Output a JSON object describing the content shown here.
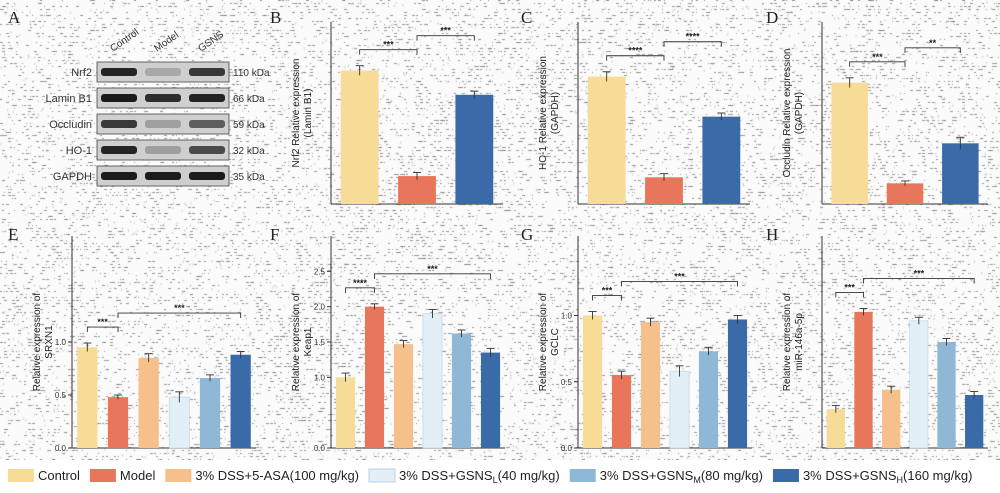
{
  "panels": [
    "A",
    "B",
    "C",
    "D",
    "E",
    "F",
    "G",
    "H"
  ],
  "colors": {
    "control": "#f6dc96",
    "model": "#e8765a",
    "asa": "#f5c08c",
    "gsns_l": "#e2eff7",
    "gsns_m": "#8fb8d6",
    "gsns_h": "#3b6aa8"
  },
  "blot": {
    "lanes": [
      "Control",
      "Model",
      "GSNS"
    ],
    "proteins": [
      {
        "name": "Nrf2",
        "size": "110 kDa",
        "intensity": [
          0.9,
          0.2,
          0.8
        ]
      },
      {
        "name": "Lamin B1",
        "size": "66 kDa",
        "intensity": [
          0.95,
          0.85,
          0.9
        ]
      },
      {
        "name": "Occludin",
        "size": "59 kDa",
        "intensity": [
          0.8,
          0.25,
          0.6
        ]
      },
      {
        "name": "HO-1",
        "size": "32 kDa",
        "intensity": [
          0.9,
          0.25,
          0.7
        ]
      },
      {
        "name": "GAPDH",
        "size": "35 kDa",
        "intensity": [
          0.95,
          0.95,
          0.95
        ]
      }
    ]
  },
  "legend": [
    {
      "main": "Control",
      "sub": "",
      "tail": "",
      "color": "#f6dc96"
    },
    {
      "main": "Model",
      "sub": "",
      "tail": "",
      "color": "#e8765a"
    },
    {
      "main": "3% DSS+5-ASA(100 mg/kg)",
      "sub": "",
      "tail": "",
      "color": "#f5c08c"
    },
    {
      "main": "3% DSS+GSNS",
      "sub": "L",
      "tail": "(40 mg/kg)",
      "color": "#e2eff7"
    },
    {
      "main": "3% DSS+GSNS",
      "sub": "M",
      "tail": "(80 mg/kg)",
      "color": "#8fb8d6"
    },
    {
      "main": "3% DSS+GSNS",
      "sub": "H",
      "tail": "(160 mg/kg)",
      "color": "#3b6aa8"
    }
  ],
  "chart_data": [
    {
      "panel": "B",
      "type": "bar",
      "ylabel": "Nrf2 Relative expression\n(Lamin B1)",
      "categories": [
        "Control",
        "Model",
        "GSNS"
      ],
      "values": [
        1.1,
        0.23,
        0.9
      ],
      "errors": [
        0.04,
        0.03,
        0.03
      ],
      "ylim": [
        0,
        1.5
      ],
      "yticks": [],
      "sig": [
        "***",
        "***"
      ]
    },
    {
      "panel": "C",
      "type": "bar",
      "ylabel": "HO-1 Relative expression\n(GAPDH)",
      "categories": [
        "Control",
        "Model",
        "GSNS"
      ],
      "values": [
        1.05,
        0.22,
        0.72
      ],
      "errors": [
        0.04,
        0.03,
        0.03
      ],
      "ylim": [
        0,
        1.5
      ],
      "yticks": [],
      "sig": [
        "****",
        "****"
      ]
    },
    {
      "panel": "D",
      "type": "bar",
      "ylabel": "Occludin Relative expression\n(GAPDH)",
      "categories": [
        "Control",
        "Model",
        "GSNS"
      ],
      "values": [
        1.0,
        0.17,
        0.5
      ],
      "errors": [
        0.04,
        0.02,
        0.05
      ],
      "ylim": [
        0,
        1.5
      ],
      "yticks": [],
      "sig": [
        "***",
        "**"
      ]
    },
    {
      "panel": "E",
      "type": "bar",
      "ylabel": "Relative expression of\nSRXN1",
      "categories": [
        "Control",
        "Model",
        "5-ASA",
        "GSNS-L",
        "GSNS-M",
        "GSNS-H"
      ],
      "values": [
        0.95,
        0.48,
        0.85,
        0.48,
        0.66,
        0.88
      ],
      "errors": [
        0.04,
        0.02,
        0.04,
        0.05,
        0.03,
        0.03
      ],
      "ylim": [
        0,
        2.0
      ],
      "yticks": [
        0,
        0.5,
        1.0
      ],
      "sig": [
        "***",
        "***"
      ]
    },
    {
      "panel": "F",
      "type": "bar",
      "ylabel": "Relative expression of\nKeap1",
      "categories": [
        "Control",
        "Model",
        "5-ASA",
        "GSNS-L",
        "GSNS-M",
        "GSNS-H"
      ],
      "values": [
        1.0,
        2.0,
        1.47,
        1.9,
        1.62,
        1.35
      ],
      "errors": [
        0.06,
        0.04,
        0.05,
        0.06,
        0.05,
        0.06
      ],
      "ylim": [
        0,
        3.0
      ],
      "yticks": [
        0,
        1.0,
        1.5,
        2.0,
        2.5
      ],
      "sig": [
        "****",
        "***"
      ]
    },
    {
      "panel": "G",
      "type": "bar",
      "ylabel": "Relative expression of\nGCLC",
      "categories": [
        "Control",
        "Model",
        "5-ASA",
        "GSNS-L",
        "GSNS-M",
        "GSNS-H"
      ],
      "values": [
        1.0,
        0.55,
        0.95,
        0.58,
        0.73,
        0.97
      ],
      "errors": [
        0.03,
        0.03,
        0.03,
        0.04,
        0.03,
        0.03
      ],
      "ylim": [
        0,
        1.6
      ],
      "yticks": [
        0,
        0.5,
        1.0
      ],
      "sig": [
        "***",
        "***"
      ]
    },
    {
      "panel": "H",
      "type": "bar",
      "ylabel": "Relative expression of\nmiR-146a-5p",
      "categories": [
        "Control",
        "Model",
        "5-ASA",
        "GSNS-L",
        "GSNS-M",
        "GSNS-H"
      ],
      "values": [
        0.22,
        0.77,
        0.33,
        0.72,
        0.6,
        0.3
      ],
      "errors": [
        0.02,
        0.02,
        0.02,
        0.02,
        0.02,
        0.02
      ],
      "ylim": [
        0,
        1.2
      ],
      "yticks": [],
      "sig": [
        "***",
        "***"
      ]
    }
  ]
}
